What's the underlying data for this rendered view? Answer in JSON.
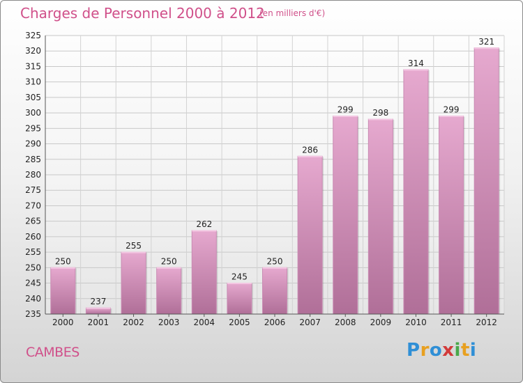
{
  "header": {
    "title": "Charges de Personnel 2000 à 2012",
    "subtitle": "(en milliers d'€)"
  },
  "footer": {
    "city": "CAMBES",
    "logo": "Proxiti"
  },
  "colors": {
    "title": "#d0508a",
    "bar_top": "#e6a9cf",
    "bar_bottom": "#b06f98",
    "logo_letters": [
      "#2f8fd6",
      "#e8a020",
      "#2f8fd6",
      "#d23a3a",
      "#4aa84a",
      "#e8a020",
      "#2f8fd6"
    ]
  },
  "chart_data": {
    "type": "bar",
    "title": "Charges de Personnel 2000 à 2012",
    "subtitle": "(en milliers d'€)",
    "categories": [
      "2000",
      "2001",
      "2002",
      "2003",
      "2004",
      "2005",
      "2006",
      "2007",
      "2008",
      "2009",
      "2010",
      "2011",
      "2012"
    ],
    "values": [
      250,
      237,
      255,
      250,
      262,
      245,
      250,
      286,
      299,
      298,
      314,
      299,
      321
    ],
    "ylim": [
      235,
      325
    ],
    "yticks": [
      235,
      240,
      245,
      250,
      255,
      260,
      265,
      270,
      275,
      280,
      285,
      290,
      295,
      300,
      305,
      310,
      315,
      320,
      325
    ],
    "grid": true,
    "data_labels": true
  }
}
